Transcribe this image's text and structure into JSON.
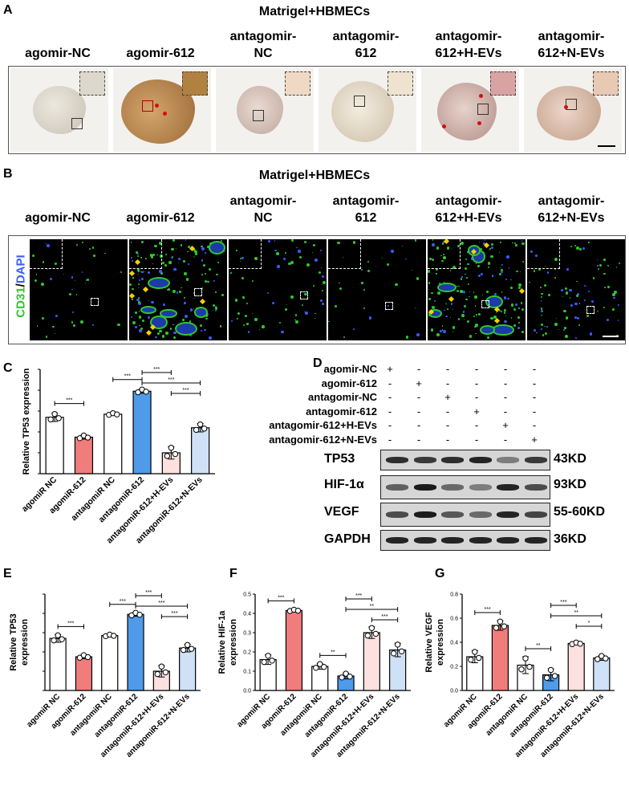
{
  "panels": {
    "A": "A",
    "B": "B",
    "C": "C",
    "D": "D",
    "E": "E",
    "F": "F",
    "G": "G"
  },
  "panel_a": {
    "header": "Matrigel+HBMECs",
    "columns": [
      {
        "l1": "",
        "l2": "agomir-NC"
      },
      {
        "l1": "",
        "l2": "agomir-612"
      },
      {
        "l1": "antagomir-",
        "l2": "NC"
      },
      {
        "l1": "antagomir-",
        "l2": "612"
      },
      {
        "l1": "antagomir-",
        "l2": "612+H-EVs"
      },
      {
        "l1": "antagomir-",
        "l2": "612+N-EVs"
      }
    ]
  },
  "panel_b": {
    "header": "Matrigel+HBMECs",
    "stain_green": "CD31",
    "stain_sep": "/",
    "stain_blue": "DAPI",
    "columns": [
      {
        "l1": "",
        "l2": "agomir-NC"
      },
      {
        "l1": "",
        "l2": "agomir-612"
      },
      {
        "l1": "antagomir-",
        "l2": "NC"
      },
      {
        "l1": "antagomir-",
        "l2": "612"
      },
      {
        "l1": "antagomir-",
        "l2": "612+H-EVs"
      },
      {
        "l1": "antagomir-",
        "l2": "612+N-EVs"
      }
    ]
  },
  "panel_d": {
    "rows": [
      "agomir-NC",
      "agomir-612",
      "antagomir-NC",
      "antagomir-612",
      "antagomir-612+H-EVs",
      "antagomir-612+N-EVs"
    ],
    "matrix": [
      [
        "+",
        "-",
        "-",
        "-",
        "-",
        "-"
      ],
      [
        "-",
        "+",
        "-",
        "-",
        "-",
        "-"
      ],
      [
        "-",
        "-",
        "+",
        "-",
        "-",
        "-"
      ],
      [
        "-",
        "-",
        "-",
        "+",
        "-",
        "-"
      ],
      [
        "-",
        "-",
        "-",
        "-",
        "+",
        "-"
      ],
      [
        "-",
        "-",
        "-",
        "-",
        "-",
        "+"
      ]
    ],
    "blots": [
      {
        "name": "TP53",
        "kd": "43KD",
        "intensity": [
          0.85,
          0.8,
          0.85,
          0.9,
          0.45,
          0.8
        ]
      },
      {
        "name": "HIF-1α",
        "kd": "93KD",
        "intensity": [
          0.6,
          0.95,
          0.55,
          0.45,
          0.9,
          0.7
        ]
      },
      {
        "name": "VEGF",
        "kd": "55-60KD",
        "intensity": [
          0.7,
          0.95,
          0.65,
          0.55,
          0.9,
          0.75
        ]
      },
      {
        "name": "GAPDH",
        "kd": "36KD",
        "intensity": [
          0.9,
          0.9,
          0.9,
          0.9,
          0.9,
          0.9
        ]
      }
    ]
  },
  "chart_data": [
    {
      "id": "C",
      "type": "bar",
      "categories": [
        "agomiR NC",
        "agomiR-612",
        "antagomiR NC",
        "antagomiR-612",
        "antagomiR-612+H-EVs",
        "antagomiR-612+N-EVs"
      ],
      "values": [
        0.27,
        0.175,
        0.285,
        0.395,
        0.1,
        0.22
      ],
      "errors": [
        0.02,
        0.01,
        0.006,
        0.01,
        0.03,
        0.02
      ],
      "ylabel": "Relative TP53 expression",
      "ylim": [
        0,
        0.5
      ],
      "yticks": [],
      "sig": [
        {
          "from": 0,
          "to": 1,
          "label": "***",
          "level": 1
        },
        {
          "from": 2,
          "to": 3,
          "label": "***",
          "level": 1
        },
        {
          "from": 3,
          "to": 4,
          "label": "***",
          "level": 3
        },
        {
          "from": 3,
          "to": 5,
          "label": "***",
          "level": 2
        },
        {
          "from": 4,
          "to": 5,
          "label": "***",
          "level": 1
        }
      ]
    },
    {
      "id": "E",
      "type": "bar",
      "categories": [
        "agomiR NC",
        "agomiR-612",
        "antagomiR NC",
        "antagomiR-612",
        "antagomiR-612+H-EVs",
        "antagomiR-612+N-EVs"
      ],
      "values": [
        0.27,
        0.175,
        0.285,
        0.395,
        0.1,
        0.22
      ],
      "errors": [
        0.02,
        0.01,
        0.006,
        0.01,
        0.03,
        0.02
      ],
      "ylabel": "Relative TP53\nexpression",
      "ylim": [
        0,
        0.5
      ],
      "yticks": [],
      "sig": [
        {
          "from": 0,
          "to": 1,
          "label": "***",
          "level": 1
        },
        {
          "from": 2,
          "to": 3,
          "label": "***",
          "level": 1
        },
        {
          "from": 3,
          "to": 4,
          "label": "***",
          "level": 3
        },
        {
          "from": 3,
          "to": 5,
          "label": "***",
          "level": 2
        },
        {
          "from": 4,
          "to": 5,
          "label": "***",
          "level": 1
        }
      ]
    },
    {
      "id": "F",
      "type": "bar",
      "categories": [
        "agomiR NC",
        "agomiR-612",
        "antagomiR NC",
        "antagomiR-612",
        "antagomiR-612+H-EVs",
        "antagomiR-612+N-EVs"
      ],
      "values": [
        0.16,
        0.415,
        0.125,
        0.075,
        0.3,
        0.21
      ],
      "errors": [
        0.025,
        0.005,
        0.015,
        0.015,
        0.03,
        0.035
      ],
      "ylabel": "Relative HIF-1a\nexpression",
      "ylim": [
        0,
        0.5
      ],
      "yticks": [
        "0.0",
        "0.1",
        "0.2",
        "0.3",
        "0.4",
        "0.5"
      ],
      "sig": [
        {
          "from": 0,
          "to": 1,
          "label": "***",
          "level": 1
        },
        {
          "from": 2,
          "to": 3,
          "label": "**",
          "level": 1
        },
        {
          "from": 3,
          "to": 4,
          "label": "***",
          "level": 3
        },
        {
          "from": 3,
          "to": 5,
          "label": "**",
          "level": 2
        },
        {
          "from": 4,
          "to": 5,
          "label": "***",
          "level": 1
        }
      ]
    },
    {
      "id": "G",
      "type": "bar",
      "categories": [
        "agomiR NC",
        "agomiR-612",
        "antagomiR NC",
        "antagomiR-612",
        "antagomiR-612+H-EVs",
        "antagomiR-612+N-EVs"
      ],
      "values": [
        0.28,
        0.54,
        0.21,
        0.13,
        0.39,
        0.27
      ],
      "errors": [
        0.05,
        0.04,
        0.07,
        0.05,
        0.01,
        0.02
      ],
      "ylabel": "Relative VEGF\nexpression",
      "ylim": [
        0,
        0.8
      ],
      "yticks": [
        "0.0",
        "0.2",
        "0.4",
        "0.6",
        "0.8"
      ],
      "sig": [
        {
          "from": 0,
          "to": 1,
          "label": "***",
          "level": 1
        },
        {
          "from": 2,
          "to": 3,
          "label": "**",
          "level": 1
        },
        {
          "from": 3,
          "to": 4,
          "label": "***",
          "level": 3
        },
        {
          "from": 3,
          "to": 5,
          "label": "**",
          "level": 2
        },
        {
          "from": 4,
          "to": 5,
          "label": "*",
          "level": 1
        }
      ]
    }
  ],
  "colors": {
    "bars": [
      "#ffffff",
      "#f07c7c",
      "#ffffff",
      "#4f9bea",
      "#fde0e0",
      "#cfe1f6"
    ],
    "dot_fill": "#ffffff",
    "stain_green": "#2fc62f",
    "stain_blue": "#3b5bff"
  }
}
